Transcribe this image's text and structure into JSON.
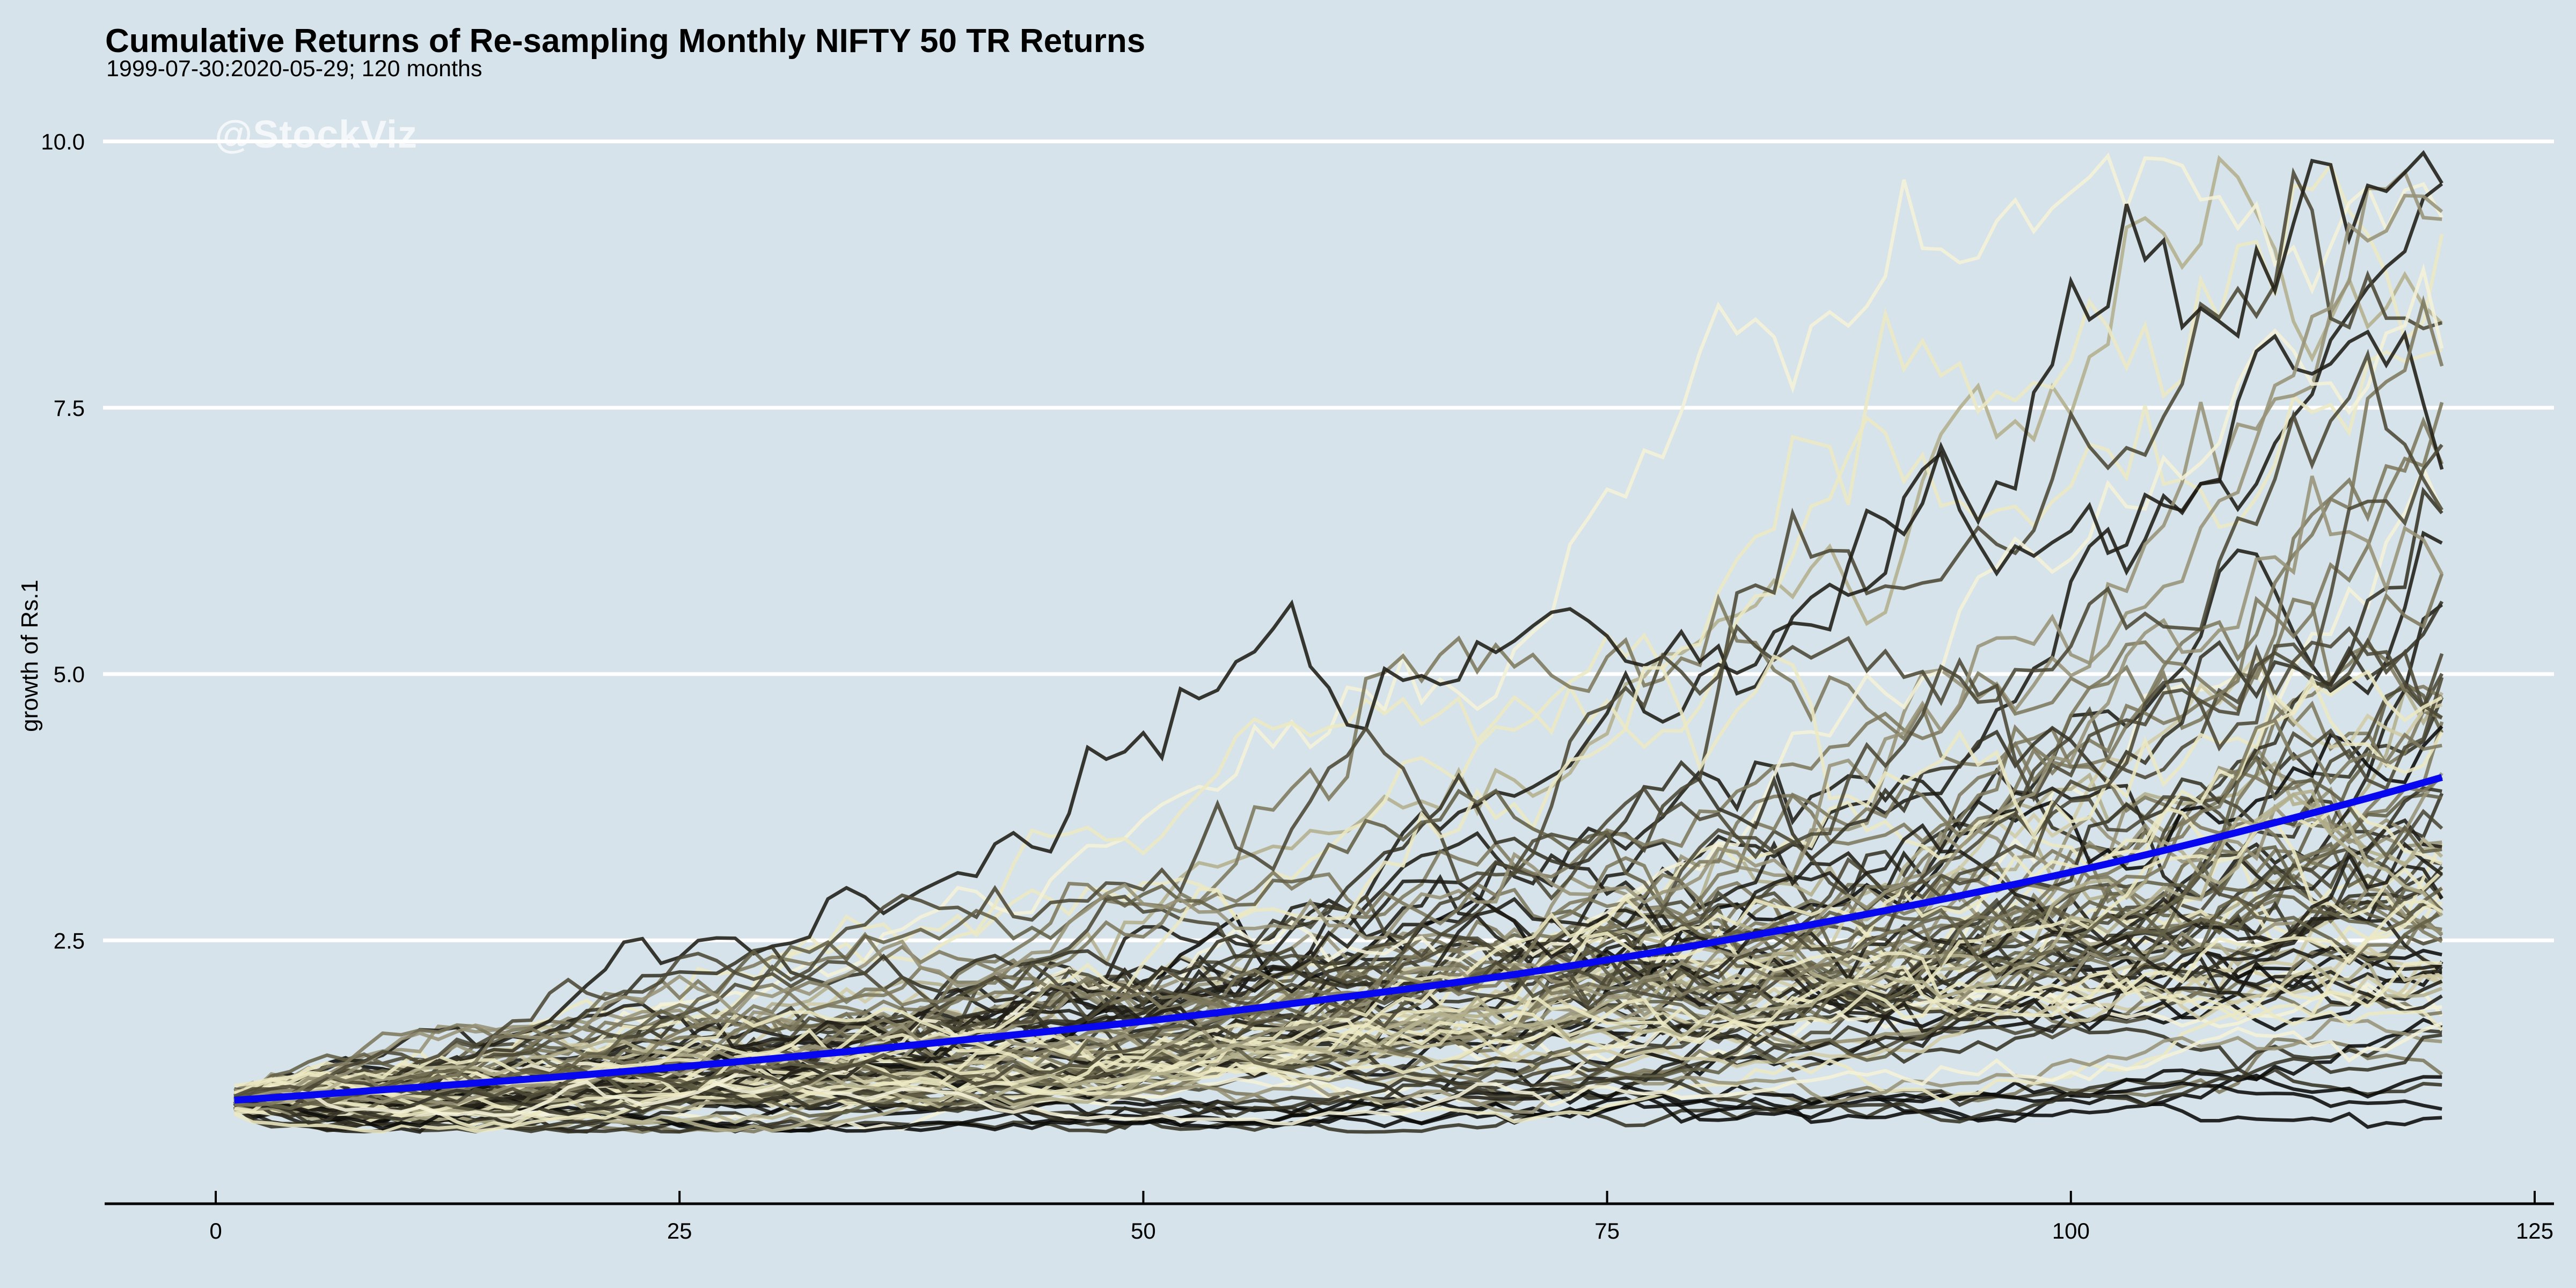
{
  "header": {
    "title": "Cumulative Returns of Re-sampling Monthly NIFTY 50 TR Returns",
    "subtitle": "1999-07-30:2020-05-29; 120 months"
  },
  "watermark": {
    "text": "@StockViz"
  },
  "chart_data": {
    "type": "line",
    "title": "Cumulative Returns of Re-sampling Monthly NIFTY 50 TR Returns",
    "subtitle": "1999-07-30:2020-05-29; 120 months",
    "xlabel": "",
    "ylabel": "growth of Rs.1",
    "x_ticks": [
      0,
      25,
      50,
      75,
      100,
      125
    ],
    "x_tick_labels": [
      "0",
      "25",
      "50",
      "75",
      "100",
      "125"
    ],
    "y_ticks": [
      2.5,
      5.0,
      7.5,
      10.0
    ],
    "y_tick_labels": [
      "2.5",
      "5.0",
      "7.5",
      "10.0"
    ],
    "xlim": [
      0,
      126
    ],
    "ylim": [
      0.65,
      10.2
    ],
    "months": 120,
    "grid": "horizontal major gridlines only, white, on light blue panel",
    "legend": "none",
    "background_color": "#d6e3ea",
    "gridline_color": "#ffffff",
    "axis_line_color": "#000000",
    "tick_label_color": "#000000",
    "mean_series": {
      "name": "actual cumulative growth path (blue)",
      "color": "#0808f0",
      "stroke_width": 13,
      "points": [
        [
          1,
          1.0
        ],
        [
          10,
          1.11
        ],
        [
          20,
          1.24
        ],
        [
          30,
          1.39
        ],
        [
          40,
          1.56
        ],
        [
          50,
          1.74
        ],
        [
          60,
          1.95
        ],
        [
          70,
          2.18
        ],
        [
          80,
          2.46
        ],
        [
          90,
          2.78
        ],
        [
          100,
          3.14
        ],
        [
          110,
          3.56
        ],
        [
          120,
          4.03
        ]
      ]
    },
    "resampled_paths": {
      "description": "Approximately 100 re-sampled (bootstrap) cumulative-return spaghetti paths of monthly NIFTY 50 TR returns; all start near Rs.1 at month 1, fan out to roughly Rs.0.7 - Rs.10 by months 100-120, colored from black through olive to pale cream",
      "count": 100,
      "start_value": 1.0,
      "monthly_drift_log": 0.0112,
      "monthly_sigma_log": 0.054,
      "value_ceiling": 9.9,
      "value_floor": 0.7,
      "seed": 20200529,
      "palette": [
        "#0b0b09",
        "#201e16",
        "#363325",
        "#4c4936",
        "#636047",
        "#7d795d",
        "#979377",
        "#b3af8d",
        "#d0cca6",
        "#ece8c3",
        "#f4f1d8"
      ],
      "stroke_width": 6.5,
      "opacity": 0.88
    }
  }
}
